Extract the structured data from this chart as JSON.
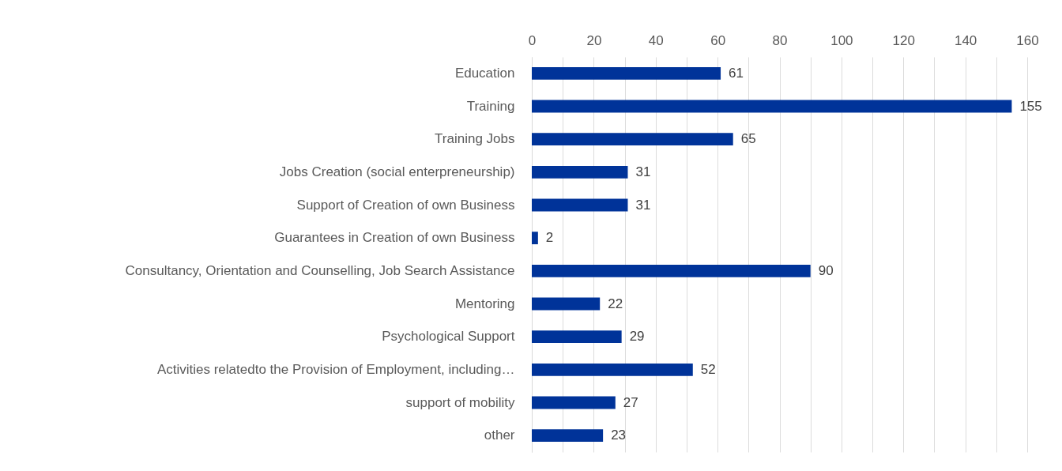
{
  "chart_data": {
    "type": "bar",
    "orientation": "horizontal",
    "categories": [
      "Education",
      "Training",
      "Training Jobs",
      "Jobs Creation (social enterpreneurship)",
      "Support of Creation of own Business",
      "Guarantees in Creation of own Business",
      "Consultancy, Orientation and Counselling, Job Search Assistance",
      "Mentoring",
      "Psychological Support",
      "Activities relatedto the Provision of Employment, including…",
      "support of mobility",
      "other"
    ],
    "values": [
      61,
      155,
      65,
      31,
      31,
      2,
      90,
      22,
      29,
      52,
      27,
      23
    ],
    "color": "#003399",
    "xlim": [
      0,
      160
    ],
    "xticks": [
      0,
      {
        "value": 10,
        "label": null
      },
      20,
      {
        "value": 30,
        "label": null
      },
      40,
      {
        "value": 50,
        "label": null
      },
      60,
      {
        "value": 70,
        "label": null
      },
      80,
      {
        "value": 90,
        "label": null
      },
      100,
      {
        "value": 110,
        "label": null
      },
      120,
      {
        "value": 130,
        "label": null
      },
      140,
      {
        "value": 150,
        "label": null
      },
      160
    ],
    "grid": "x",
    "data_labels": true
  }
}
